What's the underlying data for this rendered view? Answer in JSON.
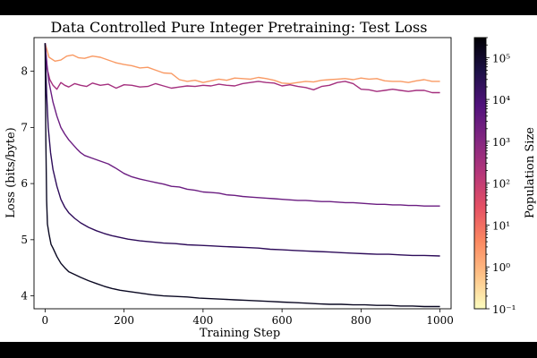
{
  "chart_data": {
    "type": "line",
    "title": "Data Controlled Pure Integer Pretraining: Test Loss",
    "xlabel": "Training Step",
    "ylabel": "Loss (bits/byte)",
    "xlim": [
      -28,
      1028
    ],
    "ylim": [
      3.77,
      8.6
    ],
    "xticks": [
      0,
      200,
      400,
      600,
      800,
      1000
    ],
    "yticks": [
      4,
      5,
      6,
      7,
      8
    ],
    "grid": false,
    "legend": "none",
    "colorbar": {
      "label": "Population Size",
      "scale": "log",
      "range": [
        0.1,
        300000
      ],
      "ticks": [
        {
          "value": 0.1,
          "label": "10⁻¹"
        },
        {
          "value": 1,
          "label": "10⁰"
        },
        {
          "value": 10,
          "label": "10¹"
        },
        {
          "value": 100,
          "label": "10²"
        },
        {
          "value": 1000,
          "label": "10³"
        },
        {
          "value": 10000,
          "label": "10⁴"
        },
        {
          "value": 100000,
          "label": "10⁵"
        }
      ],
      "colormap": [
        "#fcfdbf",
        "#fec287",
        "#fb8861",
        "#e55064",
        "#b5367a",
        "#822681",
        "#51127c",
        "#1d1147",
        "#000004"
      ]
    },
    "series": [
      {
        "name": "Population 1",
        "color": "#f99a64",
        "points": [
          [
            0,
            8.5
          ],
          [
            10,
            8.25
          ],
          [
            25,
            8.18
          ],
          [
            40,
            8.2
          ],
          [
            55,
            8.27
          ],
          [
            70,
            8.29
          ],
          [
            85,
            8.24
          ],
          [
            100,
            8.23
          ],
          [
            120,
            8.27
          ],
          [
            140,
            8.25
          ],
          [
            160,
            8.2
          ],
          [
            180,
            8.15
          ],
          [
            200,
            8.12
          ],
          [
            220,
            8.1
          ],
          [
            240,
            8.06
          ],
          [
            260,
            8.07
          ],
          [
            280,
            8.02
          ],
          [
            300,
            7.97
          ],
          [
            320,
            7.96
          ],
          [
            340,
            7.85
          ],
          [
            360,
            7.82
          ],
          [
            380,
            7.84
          ],
          [
            400,
            7.8
          ],
          [
            420,
            7.83
          ],
          [
            440,
            7.86
          ],
          [
            460,
            7.84
          ],
          [
            480,
            7.88
          ],
          [
            500,
            7.87
          ],
          [
            520,
            7.86
          ],
          [
            540,
            7.89
          ],
          [
            560,
            7.87
          ],
          [
            580,
            7.84
          ],
          [
            600,
            7.79
          ],
          [
            620,
            7.78
          ],
          [
            640,
            7.8
          ],
          [
            660,
            7.82
          ],
          [
            680,
            7.81
          ],
          [
            700,
            7.84
          ],
          [
            720,
            7.85
          ],
          [
            740,
            7.86
          ],
          [
            760,
            7.87
          ],
          [
            780,
            7.85
          ],
          [
            800,
            7.88
          ],
          [
            820,
            7.86
          ],
          [
            840,
            7.87
          ],
          [
            860,
            7.83
          ],
          [
            880,
            7.82
          ],
          [
            900,
            7.82
          ],
          [
            920,
            7.8
          ],
          [
            940,
            7.83
          ],
          [
            960,
            7.85
          ],
          [
            980,
            7.82
          ],
          [
            1000,
            7.82
          ]
        ]
      },
      {
        "name": "Population 10",
        "color": "#a42f7e",
        "points": [
          [
            0,
            8.5
          ],
          [
            5,
            8.05
          ],
          [
            12,
            7.85
          ],
          [
            20,
            7.75
          ],
          [
            30,
            7.68
          ],
          [
            40,
            7.8
          ],
          [
            50,
            7.75
          ],
          [
            60,
            7.72
          ],
          [
            75,
            7.78
          ],
          [
            90,
            7.75
          ],
          [
            105,
            7.73
          ],
          [
            120,
            7.79
          ],
          [
            140,
            7.75
          ],
          [
            160,
            7.77
          ],
          [
            180,
            7.7
          ],
          [
            200,
            7.76
          ],
          [
            220,
            7.75
          ],
          [
            240,
            7.72
          ],
          [
            260,
            7.73
          ],
          [
            280,
            7.78
          ],
          [
            300,
            7.74
          ],
          [
            320,
            7.7
          ],
          [
            340,
            7.72
          ],
          [
            360,
            7.74
          ],
          [
            380,
            7.73
          ],
          [
            400,
            7.75
          ],
          [
            420,
            7.74
          ],
          [
            440,
            7.77
          ],
          [
            460,
            7.75
          ],
          [
            480,
            7.74
          ],
          [
            500,
            7.78
          ],
          [
            520,
            7.8
          ],
          [
            540,
            7.82
          ],
          [
            560,
            7.8
          ],
          [
            580,
            7.79
          ],
          [
            600,
            7.74
          ],
          [
            620,
            7.76
          ],
          [
            640,
            7.73
          ],
          [
            660,
            7.71
          ],
          [
            680,
            7.67
          ],
          [
            700,
            7.73
          ],
          [
            720,
            7.75
          ],
          [
            740,
            7.8
          ],
          [
            760,
            7.82
          ],
          [
            780,
            7.78
          ],
          [
            800,
            7.68
          ],
          [
            820,
            7.67
          ],
          [
            840,
            7.64
          ],
          [
            860,
            7.66
          ],
          [
            880,
            7.68
          ],
          [
            900,
            7.66
          ],
          [
            920,
            7.64
          ],
          [
            940,
            7.66
          ],
          [
            960,
            7.66
          ],
          [
            980,
            7.62
          ],
          [
            1000,
            7.62
          ]
        ]
      },
      {
        "name": "Population 100",
        "color": "#6b1d81",
        "points": [
          [
            0,
            8.5
          ],
          [
            5,
            8.1
          ],
          [
            10,
            7.8
          ],
          [
            20,
            7.45
          ],
          [
            30,
            7.2
          ],
          [
            40,
            7.0
          ],
          [
            50,
            6.88
          ],
          [
            60,
            6.78
          ],
          [
            70,
            6.7
          ],
          [
            80,
            6.62
          ],
          [
            90,
            6.55
          ],
          [
            100,
            6.5
          ],
          [
            120,
            6.45
          ],
          [
            140,
            6.4
          ],
          [
            160,
            6.35
          ],
          [
            180,
            6.27
          ],
          [
            200,
            6.18
          ],
          [
            220,
            6.12
          ],
          [
            240,
            6.08
          ],
          [
            260,
            6.05
          ],
          [
            280,
            6.02
          ],
          [
            300,
            5.99
          ],
          [
            320,
            5.95
          ],
          [
            340,
            5.94
          ],
          [
            360,
            5.9
          ],
          [
            380,
            5.88
          ],
          [
            400,
            5.85
          ],
          [
            420,
            5.84
          ],
          [
            440,
            5.83
          ],
          [
            460,
            5.8
          ],
          [
            480,
            5.79
          ],
          [
            500,
            5.77
          ],
          [
            520,
            5.76
          ],
          [
            540,
            5.75
          ],
          [
            560,
            5.74
          ],
          [
            580,
            5.73
          ],
          [
            600,
            5.72
          ],
          [
            620,
            5.71
          ],
          [
            640,
            5.7
          ],
          [
            660,
            5.7
          ],
          [
            680,
            5.69
          ],
          [
            700,
            5.68
          ],
          [
            720,
            5.68
          ],
          [
            740,
            5.67
          ],
          [
            760,
            5.66
          ],
          [
            780,
            5.66
          ],
          [
            800,
            5.65
          ],
          [
            820,
            5.64
          ],
          [
            840,
            5.63
          ],
          [
            860,
            5.63
          ],
          [
            880,
            5.62
          ],
          [
            900,
            5.62
          ],
          [
            920,
            5.61
          ],
          [
            940,
            5.61
          ],
          [
            960,
            5.6
          ],
          [
            980,
            5.6
          ],
          [
            1000,
            5.6
          ]
        ]
      },
      {
        "name": "Population 10000",
        "color": "#2e0c5a",
        "points": [
          [
            0,
            8.5
          ],
          [
            4,
            7.6
          ],
          [
            8,
            7.0
          ],
          [
            14,
            6.55
          ],
          [
            20,
            6.25
          ],
          [
            30,
            5.95
          ],
          [
            40,
            5.72
          ],
          [
            50,
            5.58
          ],
          [
            60,
            5.48
          ],
          [
            75,
            5.38
          ],
          [
            90,
            5.3
          ],
          [
            110,
            5.22
          ],
          [
            130,
            5.16
          ],
          [
            150,
            5.11
          ],
          [
            170,
            5.07
          ],
          [
            190,
            5.04
          ],
          [
            210,
            5.01
          ],
          [
            240,
            4.98
          ],
          [
            270,
            4.96
          ],
          [
            300,
            4.94
          ],
          [
            330,
            4.93
          ],
          [
            360,
            4.91
          ],
          [
            390,
            4.9
          ],
          [
            420,
            4.89
          ],
          [
            450,
            4.88
          ],
          [
            480,
            4.87
          ],
          [
            510,
            4.86
          ],
          [
            540,
            4.85
          ],
          [
            570,
            4.83
          ],
          [
            600,
            4.82
          ],
          [
            630,
            4.81
          ],
          [
            660,
            4.8
          ],
          [
            690,
            4.79
          ],
          [
            720,
            4.78
          ],
          [
            750,
            4.77
          ],
          [
            780,
            4.76
          ],
          [
            810,
            4.75
          ],
          [
            840,
            4.74
          ],
          [
            870,
            4.74
          ],
          [
            900,
            4.73
          ],
          [
            930,
            4.72
          ],
          [
            960,
            4.72
          ],
          [
            1000,
            4.71
          ]
        ]
      },
      {
        "name": "Population 100000",
        "color": "#0a0822",
        "points": [
          [
            0,
            8.5
          ],
          [
            2,
            6.8
          ],
          [
            4,
            5.7
          ],
          [
            6,
            5.28
          ],
          [
            10,
            5.1
          ],
          [
            15,
            4.92
          ],
          [
            20,
            4.85
          ],
          [
            30,
            4.7
          ],
          [
            40,
            4.58
          ],
          [
            50,
            4.5
          ],
          [
            60,
            4.43
          ],
          [
            75,
            4.38
          ],
          [
            90,
            4.33
          ],
          [
            110,
            4.27
          ],
          [
            130,
            4.22
          ],
          [
            150,
            4.17
          ],
          [
            170,
            4.13
          ],
          [
            190,
            4.1
          ],
          [
            210,
            4.08
          ],
          [
            240,
            4.05
          ],
          [
            270,
            4.02
          ],
          [
            300,
            4.0
          ],
          [
            330,
            3.99
          ],
          [
            360,
            3.98
          ],
          [
            390,
            3.96
          ],
          [
            420,
            3.95
          ],
          [
            450,
            3.94
          ],
          [
            480,
            3.93
          ],
          [
            510,
            3.92
          ],
          [
            540,
            3.91
          ],
          [
            570,
            3.9
          ],
          [
            600,
            3.89
          ],
          [
            630,
            3.88
          ],
          [
            660,
            3.87
          ],
          [
            690,
            3.86
          ],
          [
            720,
            3.85
          ],
          [
            750,
            3.85
          ],
          [
            780,
            3.84
          ],
          [
            810,
            3.84
          ],
          [
            840,
            3.83
          ],
          [
            870,
            3.83
          ],
          [
            900,
            3.82
          ],
          [
            930,
            3.82
          ],
          [
            960,
            3.81
          ],
          [
            1000,
            3.81
          ]
        ]
      }
    ]
  }
}
